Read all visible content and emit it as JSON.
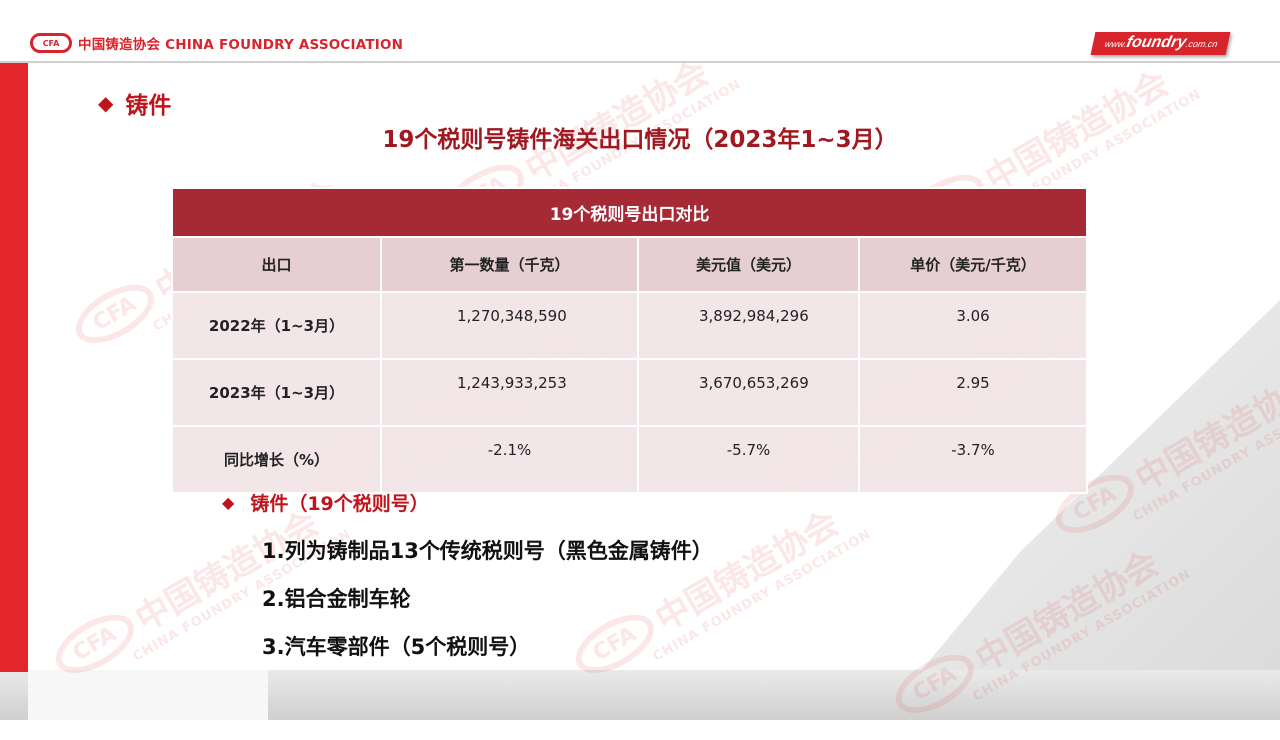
{
  "header": {
    "logo_mark": "CFA",
    "logo_text": "中国铸造协会 CHINA FOUNDRY ASSOCIATION",
    "url_prefix": "www.",
    "url_main": "foundry",
    "url_suffix": ".com.cn"
  },
  "watermark": {
    "mark": "CFA",
    "cn": "中国铸造协会",
    "en": "CHINA FOUNDRY ASSOCIATION"
  },
  "section_heading": {
    "icon": "diamond-icon",
    "text": "铸件"
  },
  "title": "19个税则号铸件海关出口情况（2023年1~3月）",
  "table": {
    "title": "19个税则号出口对比",
    "columns": [
      "出口",
      "第一数量（千克）",
      "美元值（美元）",
      "单价（美元/千克）"
    ],
    "rows": [
      [
        "2022年（1~3月）",
        "1,270,348,590",
        "3,892,984,296",
        "3.06"
      ],
      [
        "2023年（1~3月）",
        "1,243,933,253",
        "3,670,653,269",
        "2.95"
      ],
      [
        "同比增长（%）",
        "-2.1%",
        "-5.7%",
        "-3.7%"
      ]
    ]
  },
  "notes": {
    "icon": "diamond-icon",
    "heading": "铸件（19个税则号）",
    "items": [
      "1.列为铸制品13个传统税则号（黑色金属铸件）",
      "2.铝合金制车轮",
      "3.汽车零部件（5个税则号）"
    ]
  },
  "colors": {
    "brand_red": "#d9242b",
    "title_red": "#a01820",
    "table_header": "#a52a35",
    "table_column_header": "#e5cfd2",
    "table_row": "#f2e4e6"
  }
}
